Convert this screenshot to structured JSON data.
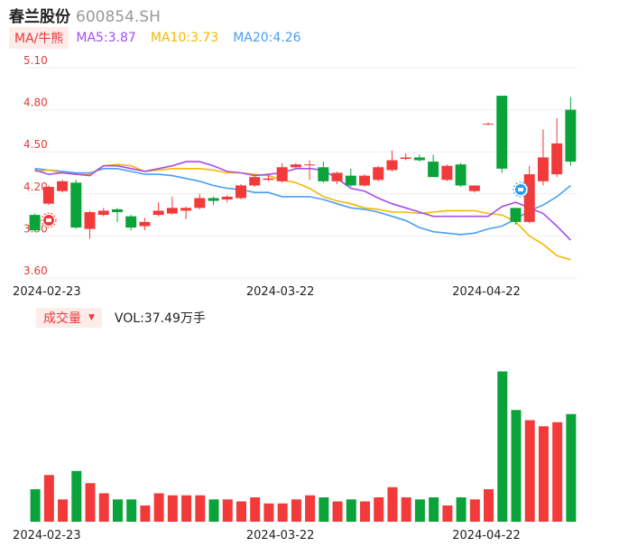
{
  "header": {
    "name": "春兰股份",
    "code": "600854.SH"
  },
  "ma_legend": {
    "tag": "MA/牛熊",
    "items": [
      {
        "label": "MA5:3.87",
        "color": "#a64cf0"
      },
      {
        "label": "MA10:3.73",
        "color": "#f5b800"
      },
      {
        "label": "MA20:4.26",
        "color": "#4a9ff0"
      }
    ]
  },
  "volume_legend": {
    "tag": "成交量",
    "caret": "▼",
    "text": "VOL:37.49万手"
  },
  "colors": {
    "up": "#f23a3a",
    "down": "#0aa33a",
    "axis_label": "#e8393a",
    "grid": "#eeeeee",
    "date_label": "#222222"
  },
  "chart_data": {
    "type": "candlestick",
    "y_ticks": [
      "5.10",
      "4.80",
      "4.50",
      "4.20",
      "3.90",
      "3.60"
    ],
    "y_range": [
      3.6,
      5.1
    ],
    "x_labels": [
      {
        "index": 1,
        "text": "2024-02-23"
      },
      {
        "index": 18,
        "text": "2024-03-22"
      },
      {
        "index": 33,
        "text": "2024-04-22"
      }
    ],
    "candles": [
      [
        4.05,
        4.06,
        3.93,
        3.94
      ],
      [
        4.13,
        4.26,
        4.12,
        4.25
      ],
      [
        4.22,
        4.3,
        4.21,
        4.29
      ],
      [
        4.28,
        4.3,
        3.95,
        3.96
      ],
      [
        3.95,
        4.08,
        3.88,
        4.07
      ],
      [
        4.05,
        4.1,
        4.04,
        4.08
      ],
      [
        4.09,
        4.1,
        4.0,
        4.07
      ],
      [
        4.04,
        4.05,
        3.94,
        3.96
      ],
      [
        3.97,
        4.03,
        3.94,
        4.0
      ],
      [
        4.05,
        4.14,
        4.04,
        4.08
      ],
      [
        4.06,
        4.18,
        4.05,
        4.1
      ],
      [
        4.08,
        4.11,
        4.02,
        4.1
      ],
      [
        4.1,
        4.2,
        4.09,
        4.17
      ],
      [
        4.17,
        4.18,
        4.12,
        4.15
      ],
      [
        4.16,
        4.19,
        4.14,
        4.18
      ],
      [
        4.17,
        4.27,
        4.16,
        4.26
      ],
      [
        4.26,
        4.34,
        4.25,
        4.32
      ],
      [
        4.3,
        4.34,
        4.29,
        4.31
      ],
      [
        4.29,
        4.42,
        4.28,
        4.39
      ],
      [
        4.39,
        4.42,
        4.38,
        4.41
      ],
      [
        4.41,
        4.44,
        4.3,
        4.41
      ],
      [
        4.39,
        4.43,
        4.28,
        4.29
      ],
      [
        4.29,
        4.36,
        4.27,
        4.35
      ],
      [
        4.33,
        4.38,
        4.25,
        4.26
      ],
      [
        4.26,
        4.34,
        4.25,
        4.33
      ],
      [
        4.3,
        4.4,
        4.29,
        4.39
      ],
      [
        4.37,
        4.51,
        4.36,
        4.44
      ],
      [
        4.45,
        4.49,
        4.44,
        4.46
      ],
      [
        4.46,
        4.48,
        4.43,
        4.44
      ],
      [
        4.43,
        4.48,
        4.32,
        4.32
      ],
      [
        4.3,
        4.41,
        4.29,
        4.4
      ],
      [
        4.41,
        4.42,
        4.25,
        4.26
      ],
      [
        4.22,
        4.26,
        4.21,
        4.26
      ],
      [
        4.7,
        4.71,
        4.69,
        4.7
      ],
      [
        4.9,
        4.9,
        4.35,
        4.38
      ],
      [
        4.1,
        4.1,
        3.98,
        4.0
      ],
      [
        4.0,
        4.4,
        3.99,
        4.34
      ],
      [
        4.29,
        4.66,
        4.26,
        4.46
      ],
      [
        4.34,
        4.74,
        4.32,
        4.56
      ],
      [
        4.8,
        4.89,
        4.4,
        4.43
      ]
    ],
    "ma5": [
      4.37,
      4.34,
      4.35,
      4.34,
      4.33,
      4.4,
      4.4,
      4.38,
      4.36,
      4.38,
      4.4,
      4.43,
      4.43,
      4.4,
      4.36,
      4.35,
      4.33,
      4.34,
      4.35,
      4.38,
      4.38,
      4.37,
      4.31,
      4.24,
      4.22,
      4.17,
      4.13,
      4.1,
      4.07,
      4.04,
      4.04,
      4.04,
      4.04,
      4.04,
      4.11,
      4.14,
      4.1,
      4.06,
      3.97,
      3.87
    ],
    "ma10": [
      4.36,
      4.37,
      4.35,
      4.34,
      4.34,
      4.4,
      4.41,
      4.4,
      4.36,
      4.37,
      4.38,
      4.38,
      4.38,
      4.37,
      4.35,
      4.35,
      4.34,
      4.33,
      4.3,
      4.28,
      4.24,
      4.18,
      4.15,
      4.13,
      4.1,
      4.09,
      4.07,
      4.07,
      4.06,
      4.07,
      4.08,
      4.08,
      4.08,
      4.06,
      4.05,
      4.0,
      3.9,
      3.84,
      3.76,
      3.73
    ],
    "ma20": [
      4.38,
      4.37,
      4.36,
      4.35,
      4.35,
      4.38,
      4.38,
      4.36,
      4.34,
      4.34,
      4.33,
      4.31,
      4.29,
      4.26,
      4.24,
      4.23,
      4.21,
      4.21,
      4.18,
      4.18,
      4.18,
      4.16,
      4.13,
      4.1,
      4.09,
      4.07,
      4.04,
      4.01,
      3.96,
      3.93,
      3.92,
      3.91,
      3.92,
      3.95,
      3.97,
      4.02,
      4.08,
      4.12,
      4.18,
      4.26
    ],
    "volume": [
      16,
      23,
      11,
      25,
      19,
      14,
      11,
      11,
      8,
      14,
      13,
      13,
      13,
      11,
      11,
      10,
      12,
      9,
      9,
      11,
      13,
      12,
      10,
      11,
      10,
      12,
      17,
      12,
      11,
      12,
      8,
      12,
      11,
      16,
      74,
      55,
      50,
      47,
      49,
      53
    ],
    "volume_max": 80
  }
}
